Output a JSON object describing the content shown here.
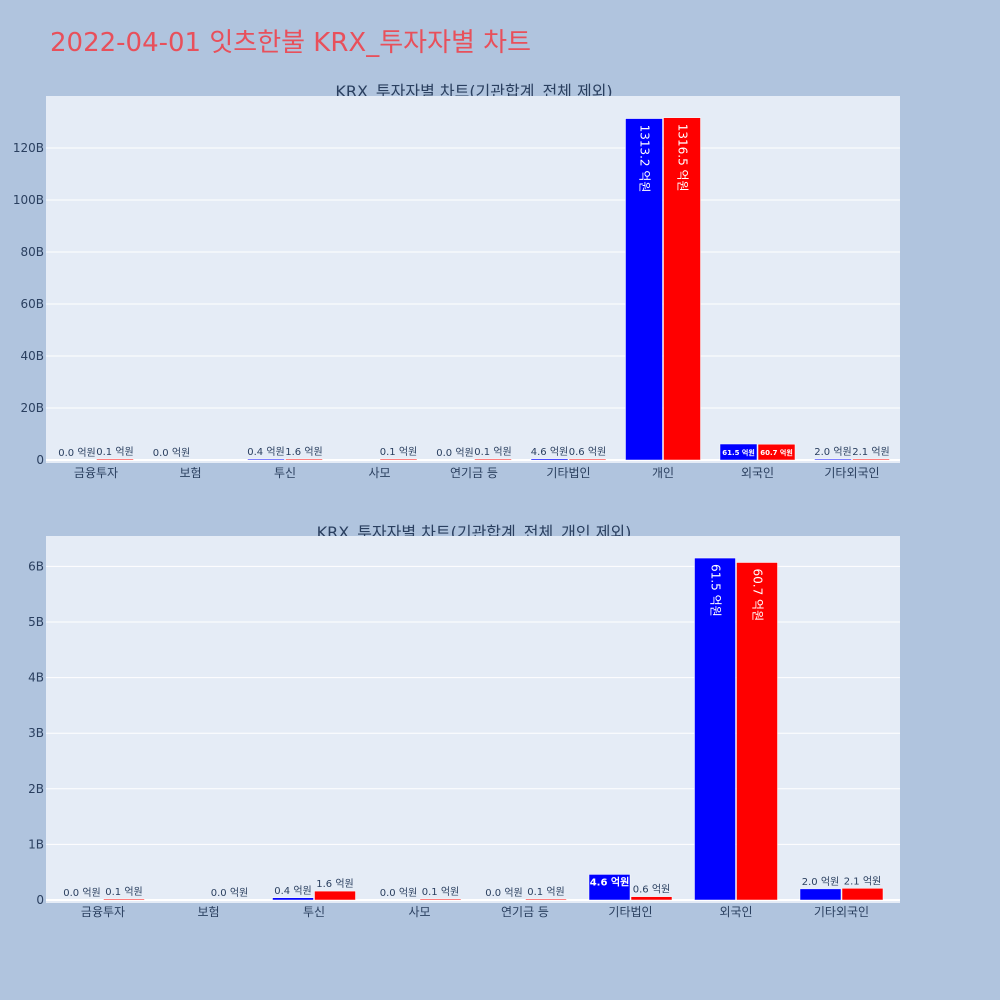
{
  "page_title": "2022-04-01 잇츠한불 KRX_투자자별 차트",
  "colors": {
    "buy": "#0000ff",
    "sell": "#ff0000",
    "plot_bg": "#e5ecf6",
    "page_bg": "#b0c4de"
  },
  "chart_data": [
    {
      "type": "bar",
      "title": "KRX_투자자별 차트(기관합계_전체 제외)",
      "categories": [
        "금융투자",
        "보험",
        "투신",
        "사모",
        "연기금 등",
        "기타법인",
        "개인",
        "외국인",
        "기타외국인"
      ],
      "y_ticks": [
        "0",
        "20B",
        "40B",
        "60B",
        "80B",
        "100B",
        "120B"
      ],
      "ylim": [
        0,
        140
      ],
      "unit": "B",
      "series": [
        {
          "color": "#0000ff",
          "values": [
            0.0,
            0.0,
            0.04,
            0.0,
            0.0,
            0.46,
            131.32,
            6.15,
            0.2
          ],
          "labels": [
            "0.0 억원",
            "0.0 억원",
            "0.4 억원",
            "",
            "0.0 억원",
            "4.6 억원",
            "1313.2 억원",
            "61.5 억원",
            "2.0 억원"
          ]
        },
        {
          "color": "#ff0000",
          "values": [
            0.01,
            0.0,
            0.16,
            0.01,
            0.01,
            0.06,
            131.65,
            6.07,
            0.21
          ],
          "labels": [
            "0.1 억원",
            "",
            "1.6 억원",
            "0.1 억원",
            "0.1 억원",
            "0.6 억원",
            "1316.5 억원",
            "60.7 억원",
            "2.1 억원"
          ]
        }
      ]
    },
    {
      "type": "bar",
      "title": "KRX_투자자별 차트(기관합계_전체_개인 제외)",
      "categories": [
        "금융투자",
        "보험",
        "투신",
        "사모",
        "연기금 등",
        "기타법인",
        "외국인",
        "기타외국인"
      ],
      "y_ticks": [
        "0",
        "1B",
        "2B",
        "3B",
        "4B",
        "5B",
        "6B"
      ],
      "ylim": [
        0,
        6.5
      ],
      "unit": "B",
      "series": [
        {
          "color": "#0000ff",
          "values": [
            0.0,
            0.0,
            0.04,
            0.0,
            0.0,
            0.46,
            6.15,
            0.2
          ],
          "labels": [
            "0.0 억원",
            "",
            "0.4 억원",
            "0.0 억원",
            "0.0 억원",
            "4.6 억원",
            "61.5 억원",
            "2.0 억원"
          ]
        },
        {
          "color": "#ff0000",
          "values": [
            0.01,
            0.0,
            0.16,
            0.01,
            0.01,
            0.06,
            6.07,
            0.21
          ],
          "labels": [
            "0.1 억원",
            "0.0 억원",
            "1.6 억원",
            "0.1 억원",
            "0.1 억원",
            "0.6 억원",
            "60.7 억원",
            "2.1 억원"
          ]
        }
      ]
    }
  ]
}
